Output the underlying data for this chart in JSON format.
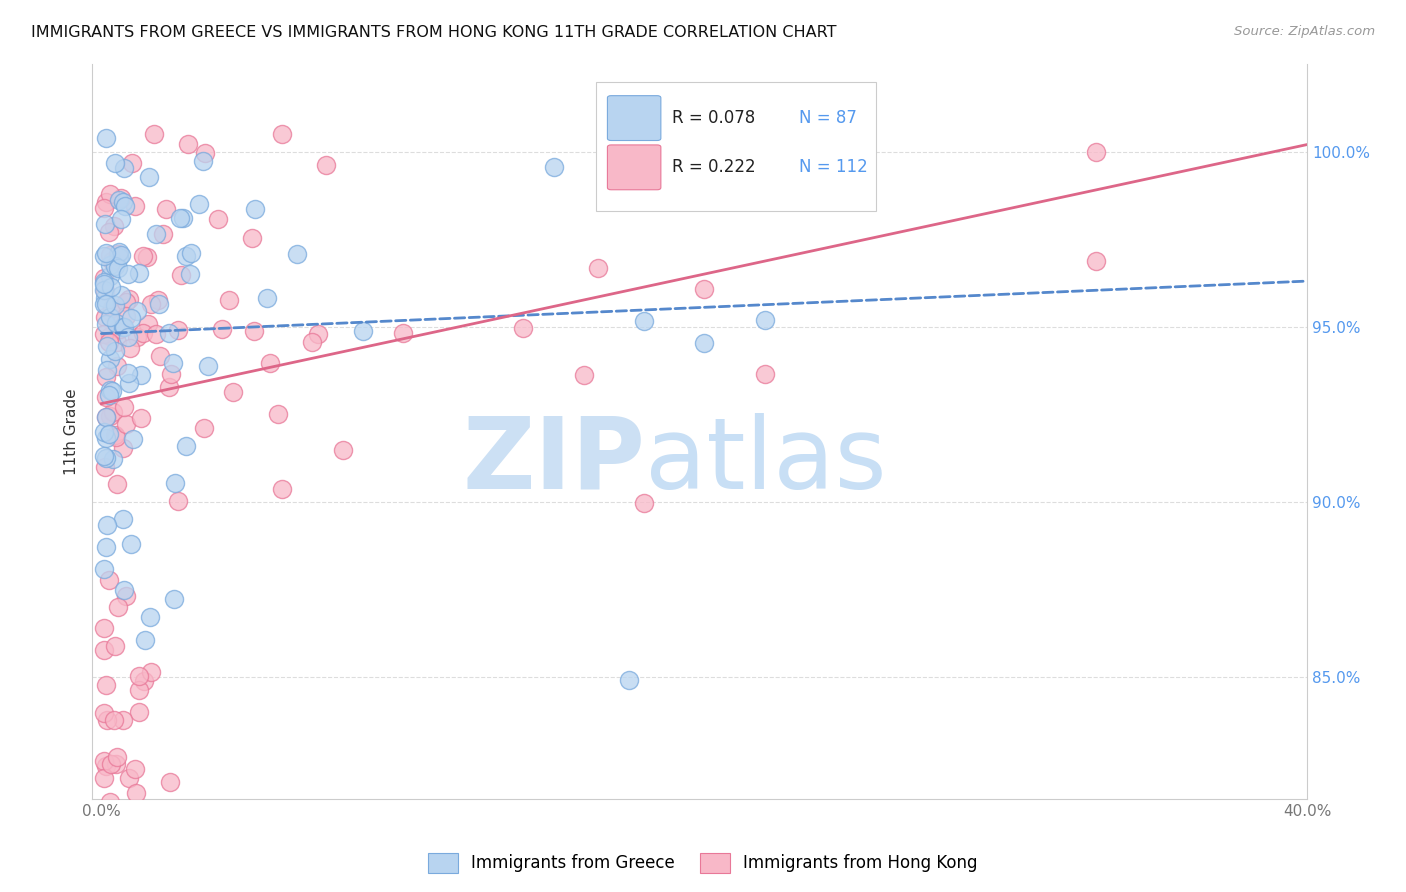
{
  "title": "IMMIGRANTS FROM GREECE VS IMMIGRANTS FROM HONG KONG 11TH GRADE CORRELATION CHART",
  "source": "Source: ZipAtlas.com",
  "ylabel": "11th Grade",
  "legend_r_greece": "R = 0.078",
  "legend_n_greece": "N = 87",
  "legend_r_hk": "R = 0.222",
  "legend_n_hk": "N = 112",
  "color_greece_fill": "#b8d4f0",
  "color_hk_fill": "#f8b8c8",
  "color_greece_edge": "#7aaadd",
  "color_hk_edge": "#e87898",
  "color_greece_line": "#5588cc",
  "color_hk_line": "#dd6688",
  "watermark_zip_color": "#cce0f4",
  "watermark_atlas_color": "#c8dff5",
  "grid_color": "#dddddd",
  "ytick_color": "#5599ee",
  "xtick_color": "#777777",
  "xlim": [
    0.0,
    0.4
  ],
  "ylim": [
    0.815,
    1.025
  ],
  "yticks": [
    0.85,
    0.9,
    0.95,
    1.0
  ],
  "ytick_labels": [
    "85.0%",
    "90.0%",
    "95.0%",
    "100.0%"
  ],
  "xtick_positions": [
    0.0,
    0.05,
    0.1,
    0.15,
    0.2,
    0.25,
    0.3,
    0.35,
    0.4
  ],
  "greece_line_x0": 0.0,
  "greece_line_x1": 0.4,
  "greece_line_y0": 0.948,
  "greece_line_y1": 0.963,
  "hk_line_x0": 0.0,
  "hk_line_x1": 0.4,
  "hk_line_y0": 0.928,
  "hk_line_y1": 1.002
}
